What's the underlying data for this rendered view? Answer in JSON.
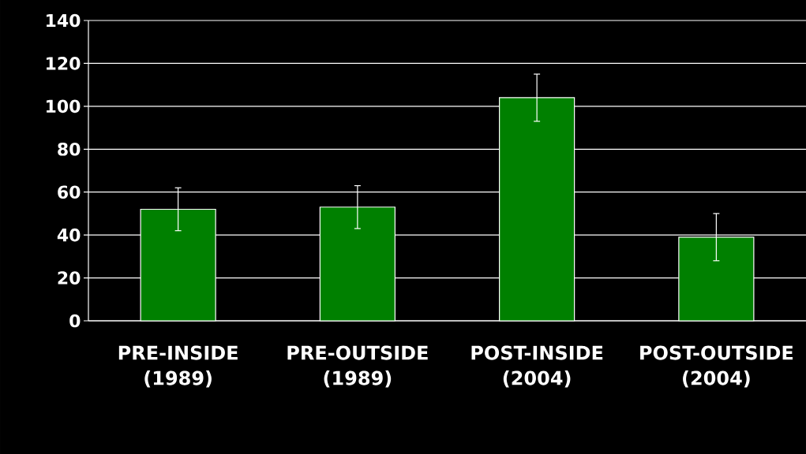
{
  "chart_data": {
    "type": "bar",
    "categories": [
      "PRE-INSIDE (1989)",
      "PRE-OUTSIDE (1989)",
      "POST-INSIDE (2004)",
      "POST-OUTSIDE (2004)"
    ],
    "values": [
      52,
      53,
      104,
      39
    ],
    "errors": [
      10,
      10,
      11,
      11
    ],
    "color": "#008000",
    "ylim": [
      0,
      140
    ],
    "yticks": [
      0,
      20,
      40,
      60,
      80,
      100,
      120,
      140
    ],
    "grid": "y"
  }
}
